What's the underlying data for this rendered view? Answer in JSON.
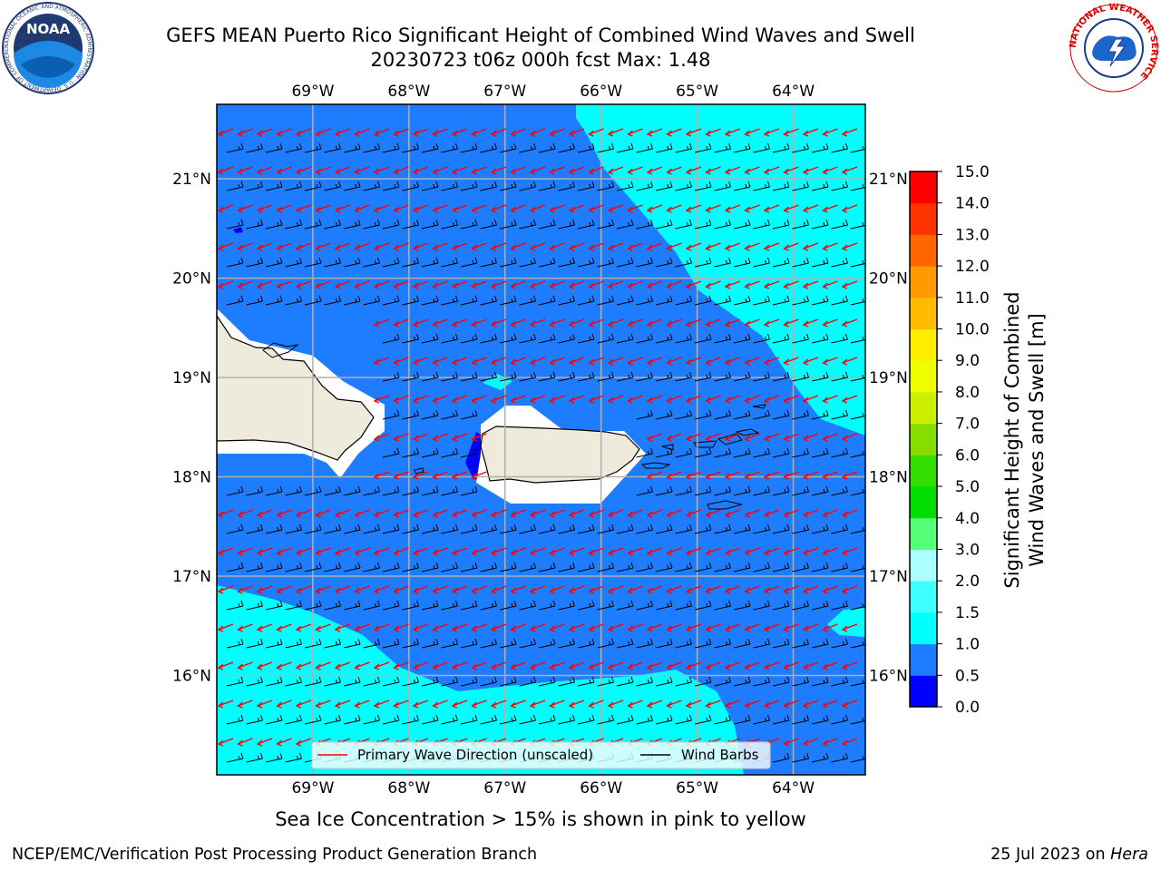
{
  "title": {
    "line1": "GEFS MEAN Puerto Rico Significant Height of Combined Wind Waves and Swell",
    "line2": "20230723 t06z 000h fcst   Max: 1.48"
  },
  "axes": {
    "lon_labels": [
      "69°W",
      "68°W",
      "67°W",
      "66°W",
      "65°W",
      "64°W"
    ],
    "lat_labels": [
      "21°N",
      "20°N",
      "19°N",
      "18°N",
      "17°N",
      "16°N"
    ],
    "lon_range": [
      -70.0,
      -63.25
    ],
    "lat_range": [
      15.0,
      21.75
    ]
  },
  "legend": {
    "items": [
      {
        "label": "Primary Wave Direction (unscaled)",
        "color": "#ff0000"
      },
      {
        "label": "Wind Barbs",
        "color": "#000000"
      }
    ]
  },
  "colorbar": {
    "label_line1": "Significant Height of Combined",
    "label_line2": "Wind Waves and Swell [m]",
    "ticks": [
      "0.0",
      "0.5",
      "1.0",
      "1.5",
      "2.0",
      "3.0",
      "4.0",
      "5.0",
      "6.0",
      "7.0",
      "8.0",
      "9.0",
      "10.0",
      "11.0",
      "12.0",
      "13.0",
      "14.0",
      "15.0"
    ],
    "colors": [
      "#0000ff",
      "#1e7cff",
      "#00ffff",
      "#40ffff",
      "#aaffff",
      "#55ff77",
      "#00dd00",
      "#33dd00",
      "#88dd00",
      "#ccee00",
      "#eeff00",
      "#ffee00",
      "#ffbb00",
      "#ff9900",
      "#ff6600",
      "#ff3300",
      "#ff0000"
    ]
  },
  "colors": {
    "land": "#eeebdc",
    "sea_main": "#1e7cff",
    "sea_swell": "#00ffff",
    "grid": "#b0b0b0",
    "wave_arrow": "#ff0000",
    "wind_barb": "#000000"
  },
  "bottom_note": "Sea Ice Concentration > 15% is shown in pink to yellow",
  "footer": {
    "left": "NCEP/EMC/Verification Post Processing Product Generation Branch",
    "right_prefix": "25 Jul 2023 on ",
    "right_machine": "Hera"
  },
  "logos": {
    "noaa_text": "NOAA",
    "noaa_ring": "NATIONAL OCEANIC AND ATMOSPHERIC ADMINISTRATION · U.S. DEPARTMENT OF COMMERCE",
    "nws_ring": "NATIONAL WEATHER SERVICE"
  }
}
